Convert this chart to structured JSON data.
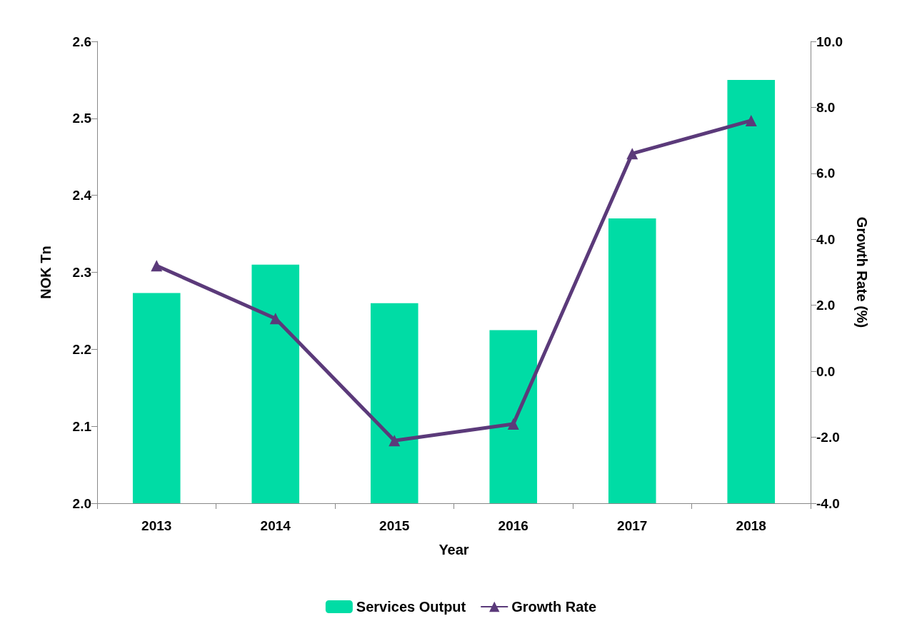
{
  "chart_data": {
    "type": "bar",
    "xlabel": "Year",
    "ylabel": "NOK Tn",
    "y2label": "Growth Rate (%)",
    "categories": [
      "2013",
      "2014",
      "2015",
      "2016",
      "2017",
      "2018"
    ],
    "series": [
      {
        "name": "Services Output",
        "color": "#00dca5",
        "values": [
          2.273,
          2.31,
          2.26,
          2.225,
          2.37,
          2.55
        ]
      },
      {
        "name": "Growth Rate",
        "type": "line",
        "axis": "y2",
        "color": "#5b3a7a",
        "marker": "triangle",
        "values": [
          3.2,
          1.6,
          -2.1,
          -1.6,
          6.6,
          7.6
        ]
      }
    ],
    "ylim": [
      2.0,
      2.6
    ],
    "yticks": [
      {
        "value": 2.0,
        "label": "2.0"
      },
      {
        "value": 2.1,
        "label": "2.1"
      },
      {
        "value": 2.2,
        "label": "2.2"
      },
      {
        "value": 2.3,
        "label": "2.3"
      },
      {
        "value": 2.4,
        "label": "2.4"
      },
      {
        "value": 2.5,
        "label": "2.5"
      },
      {
        "value": 2.6,
        "label": "2.6"
      }
    ],
    "y2lim": [
      -4,
      10
    ],
    "y2ticks": [
      {
        "value": -4,
        "label": "-4.0"
      },
      {
        "value": -2,
        "label": "-2.0"
      },
      {
        "value": 0,
        "label": "0.0"
      },
      {
        "value": 2,
        "label": "2.0"
      },
      {
        "value": 4,
        "label": "4.0"
      },
      {
        "value": 6,
        "label": "6.0"
      },
      {
        "value": 8,
        "label": "8.0"
      },
      {
        "value": 10,
        "label": "10.0"
      }
    ],
    "grid": false,
    "legend": "bottom"
  }
}
